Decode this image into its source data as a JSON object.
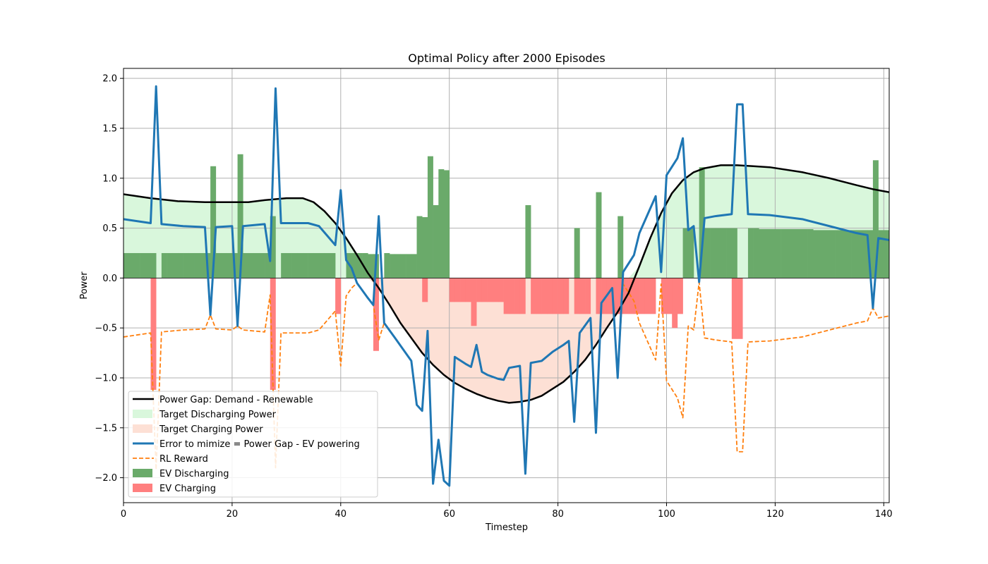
{
  "chart_data": {
    "type": "line",
    "title": "Optimal Policy after 2000 Episodes",
    "xlabel": "Timestep",
    "ylabel": "Power",
    "xlim": [
      0,
      141
    ],
    "ylim": [
      -2.25,
      2.1
    ],
    "x_ticks": [
      0,
      20,
      40,
      60,
      80,
      100,
      120,
      140
    ],
    "y_ticks": [
      -2.0,
      -1.5,
      -1.0,
      -0.5,
      0.0,
      0.5,
      1.0,
      1.5,
      2.0
    ],
    "x_tick_labels": [
      "0",
      "20",
      "40",
      "60",
      "80",
      "100",
      "120",
      "140"
    ],
    "y_tick_labels": [
      "−2.0",
      "−1.5",
      "−1.0",
      "−0.5",
      "0.0",
      "0.5",
      "1.0",
      "1.5",
      "2.0"
    ],
    "grid": true,
    "legend_position": "lower-left",
    "colors": {
      "power_gap": "#000000",
      "target_discharging": "#d9f7dc",
      "target_charging": "#fde0d5",
      "error": "#1f77b4",
      "rl_reward": "#ff7f0e",
      "ev_discharging": "#6aaa6a",
      "ev_charging": "#ff7f7f"
    },
    "legend": [
      {
        "label": "Power Gap: Demand - Renewable",
        "kind": "line",
        "color": "#000000",
        "dash": ""
      },
      {
        "label": "Target Discharging Power",
        "kind": "patch",
        "color": "#d9f7dc"
      },
      {
        "label": "Target Charging Power",
        "kind": "patch",
        "color": "#fde0d5"
      },
      {
        "label": "Error to mimize = Power Gap - EV powering",
        "kind": "line",
        "color": "#1f77b4",
        "dash": ""
      },
      {
        "label": "RL Reward",
        "kind": "line",
        "color": "#ff7f0e",
        "dash": "6,3"
      },
      {
        "label": "EV Discharging",
        "kind": "patch",
        "color": "#6aaa6a"
      },
      {
        "label": "EV Charging",
        "kind": "patch",
        "color": "#ff7f7f"
      }
    ],
    "power_gap": {
      "x": [
        0,
        5,
        10,
        15,
        18,
        23,
        26,
        30,
        33,
        35,
        37,
        39,
        41,
        43,
        45,
        47,
        49,
        51,
        53,
        55,
        57,
        59,
        61,
        63,
        65,
        67,
        69,
        71,
        73,
        75,
        77,
        79,
        81,
        83,
        85,
        87,
        89,
        91,
        93,
        95,
        97,
        99,
        101,
        103,
        105,
        107,
        110,
        113,
        116,
        119,
        125,
        130,
        135,
        138,
        141
      ],
      "y": [
        0.84,
        0.8,
        0.77,
        0.76,
        0.76,
        0.76,
        0.78,
        0.8,
        0.8,
        0.76,
        0.67,
        0.55,
        0.4,
        0.23,
        0.05,
        -0.1,
        -0.27,
        -0.45,
        -0.6,
        -0.75,
        -0.87,
        -0.97,
        -1.05,
        -1.11,
        -1.16,
        -1.2,
        -1.23,
        -1.25,
        -1.24,
        -1.22,
        -1.18,
        -1.11,
        -1.04,
        -0.94,
        -0.82,
        -0.67,
        -0.5,
        -0.34,
        -0.15,
        0.12,
        0.4,
        0.65,
        0.85,
        0.98,
        1.06,
        1.1,
        1.13,
        1.13,
        1.12,
        1.11,
        1.06,
        1.0,
        0.93,
        0.89,
        0.86
      ]
    },
    "error": {
      "x": [
        0,
        5,
        6,
        7,
        11,
        15,
        16,
        17,
        20,
        21,
        22,
        26,
        27,
        28,
        29,
        32,
        34,
        36,
        39,
        40,
        41,
        42,
        43,
        45,
        46,
        47,
        48,
        50,
        53,
        54,
        55,
        56,
        57,
        58,
        59,
        60,
        61,
        63,
        64,
        65,
        66,
        67,
        69,
        70,
        71,
        73,
        74,
        75,
        77,
        79,
        81,
        82,
        83,
        84,
        86,
        87,
        88,
        90,
        91,
        92,
        94,
        95,
        98,
        99,
        100,
        102,
        103,
        104,
        105,
        106,
        107,
        109,
        112,
        113,
        114,
        115,
        119,
        125,
        130,
        135,
        137,
        138,
        139,
        141
      ],
      "y": [
        0.59,
        0.55,
        1.92,
        0.54,
        0.52,
        0.51,
        -0.37,
        0.51,
        0.52,
        -0.48,
        0.52,
        0.54,
        0.17,
        1.9,
        0.55,
        0.55,
        0.55,
        0.52,
        0.33,
        0.88,
        0.18,
        0.1,
        -0.05,
        -0.2,
        -0.27,
        0.62,
        -0.45,
        -0.6,
        -0.83,
        -1.27,
        -1.33,
        -0.53,
        -2.06,
        -1.62,
        -2.03,
        -2.08,
        -0.79,
        -0.86,
        -0.89,
        -0.67,
        -0.94,
        -0.97,
        -1.01,
        -1.02,
        -0.9,
        -0.88,
        -1.96,
        -0.85,
        -0.83,
        -0.74,
        -0.67,
        -0.63,
        -1.44,
        -0.55,
        -0.4,
        -1.55,
        -0.25,
        -0.1,
        -1.0,
        0.06,
        0.23,
        0.45,
        0.82,
        0.06,
        1.03,
        1.2,
        1.4,
        0.48,
        0.52,
        -0.04,
        0.6,
        0.62,
        0.64,
        1.74,
        1.74,
        0.64,
        0.63,
        0.59,
        0.52,
        0.45,
        0.43,
        -0.3,
        0.4,
        0.38
      ]
    },
    "rl_reward": {
      "x": [
        0,
        5,
        6,
        7,
        11,
        15,
        16,
        17,
        20,
        21,
        22,
        26,
        27,
        28,
        29,
        32,
        34,
        36,
        39,
        40,
        41,
        42,
        43,
        45,
        46,
        47,
        48,
        50,
        53,
        54,
        55,
        56,
        57,
        58,
        59,
        60,
        61,
        63,
        64,
        65,
        66,
        67,
        69,
        70,
        71,
        73,
        74,
        75,
        77,
        79,
        81,
        82,
        83,
        84,
        86,
        87,
        88,
        90,
        91,
        92,
        94,
        95,
        98,
        99,
        100,
        102,
        103,
        104,
        105,
        106,
        107,
        109,
        112,
        113,
        114,
        115,
        119,
        125,
        130,
        135,
        137,
        138,
        139,
        141
      ],
      "y": [
        -0.59,
        -0.55,
        -1.92,
        -0.54,
        -0.52,
        -0.51,
        -0.37,
        -0.51,
        -0.52,
        -0.48,
        -0.52,
        -0.54,
        -0.17,
        -1.9,
        -0.55,
        -0.55,
        -0.55,
        -0.52,
        -0.33,
        -0.88,
        -0.18,
        -0.1,
        -0.05,
        -0.2,
        -0.27,
        -0.62,
        -0.45,
        -0.6,
        -0.83,
        -1.27,
        -1.33,
        -0.53,
        -2.06,
        -1.62,
        -2.03,
        -2.08,
        -0.79,
        -0.86,
        -0.89,
        -0.67,
        -0.94,
        -0.97,
        -1.01,
        -1.02,
        -0.9,
        -0.88,
        -1.96,
        -0.85,
        -0.83,
        -0.74,
        -0.67,
        -0.63,
        -1.44,
        -0.55,
        -0.4,
        -1.55,
        -0.25,
        -0.1,
        -1.0,
        -0.06,
        -0.23,
        -0.45,
        -0.82,
        -0.06,
        -1.03,
        -1.2,
        -1.4,
        -0.48,
        -0.52,
        -0.04,
        -0.6,
        -0.62,
        -0.64,
        -1.74,
        -1.74,
        -0.64,
        -0.63,
        -0.59,
        -0.52,
        -0.45,
        -0.43,
        -0.3,
        -0.4,
        -0.38
      ]
    },
    "ev_discharging": {
      "x": [
        0,
        1,
        2,
        3,
        4,
        5,
        7,
        8,
        9,
        10,
        11,
        12,
        13,
        14,
        15,
        16,
        17,
        18,
        19,
        20,
        21,
        22,
        23,
        24,
        25,
        26,
        27,
        29,
        30,
        31,
        32,
        33,
        34,
        35,
        36,
        37,
        38,
        41,
        42,
        43,
        44,
        45,
        46,
        48,
        49,
        50,
        51,
        52,
        53,
        54,
        55,
        56,
        57,
        58,
        59,
        60,
        74,
        83,
        87,
        91,
        103,
        104,
        106,
        107,
        108,
        109,
        110,
        111,
        112,
        115,
        116,
        117,
        118,
        119,
        120,
        121,
        122,
        123,
        124,
        125,
        126,
        127,
        128,
        129,
        130,
        131,
        132,
        133,
        134,
        135,
        136,
        137,
        138,
        139,
        140
      ],
      "y": [
        0.25,
        0.25,
        0.25,
        0.25,
        0.25,
        0.25,
        0.25,
        0.25,
        0.25,
        0.25,
        0.25,
        0.25,
        0.25,
        0.25,
        0.25,
        1.12,
        0.25,
        0.25,
        0.25,
        0.25,
        1.24,
        0.25,
        0.25,
        0.25,
        0.25,
        0.25,
        0.62,
        0.25,
        0.25,
        0.25,
        0.25,
        0.25,
        0.25,
        0.25,
        0.25,
        0.25,
        0.25,
        0.25,
        0.25,
        0.25,
        0.25,
        0.24,
        0.24,
        0.25,
        0.24,
        0.24,
        0.24,
        0.24,
        0.24,
        0.62,
        0.61,
        1.22,
        0.73,
        1.09,
        1.08,
        0.0,
        0.73,
        0.5,
        0.86,
        0.62,
        0.5,
        0.5,
        1.11,
        0.5,
        0.5,
        0.5,
        0.5,
        0.5,
        0.5,
        0.5,
        0.5,
        0.49,
        0.49,
        0.49,
        0.49,
        0.49,
        0.49,
        0.49,
        0.49,
        0.49,
        0.49,
        0.48,
        0.48,
        0.48,
        0.48,
        0.48,
        0.48,
        0.48,
        0.48,
        0.48,
        0.48,
        0.48,
        1.18,
        0.48,
        0.48
      ]
    },
    "ev_charging": {
      "x": [
        5,
        27,
        39,
        46,
        55,
        60,
        61,
        62,
        63,
        64,
        65,
        66,
        67,
        68,
        69,
        70,
        71,
        72,
        73,
        75,
        76,
        77,
        78,
        79,
        80,
        81,
        83,
        84,
        85,
        87,
        88,
        89,
        90,
        91,
        92,
        93,
        94,
        95,
        96,
        97,
        99,
        100,
        101,
        102,
        112,
        113
      ],
      "y": [
        -1.12,
        -1.12,
        -0.36,
        -0.73,
        -0.24,
        -0.24,
        -0.24,
        -0.24,
        -0.24,
        -0.48,
        -0.24,
        -0.24,
        -0.24,
        -0.24,
        -0.24,
        -0.36,
        -0.36,
        -0.36,
        -0.36,
        -0.36,
        -0.36,
        -0.36,
        -0.36,
        -0.36,
        -0.36,
        -0.36,
        -0.36,
        -0.36,
        -0.36,
        -0.36,
        -0.36,
        -0.36,
        -0.36,
        -0.36,
        -0.36,
        -0.36,
        -0.36,
        -0.36,
        -0.36,
        -0.36,
        -0.36,
        -0.36,
        -0.5,
        -0.36,
        -0.61,
        -0.61
      ]
    }
  }
}
